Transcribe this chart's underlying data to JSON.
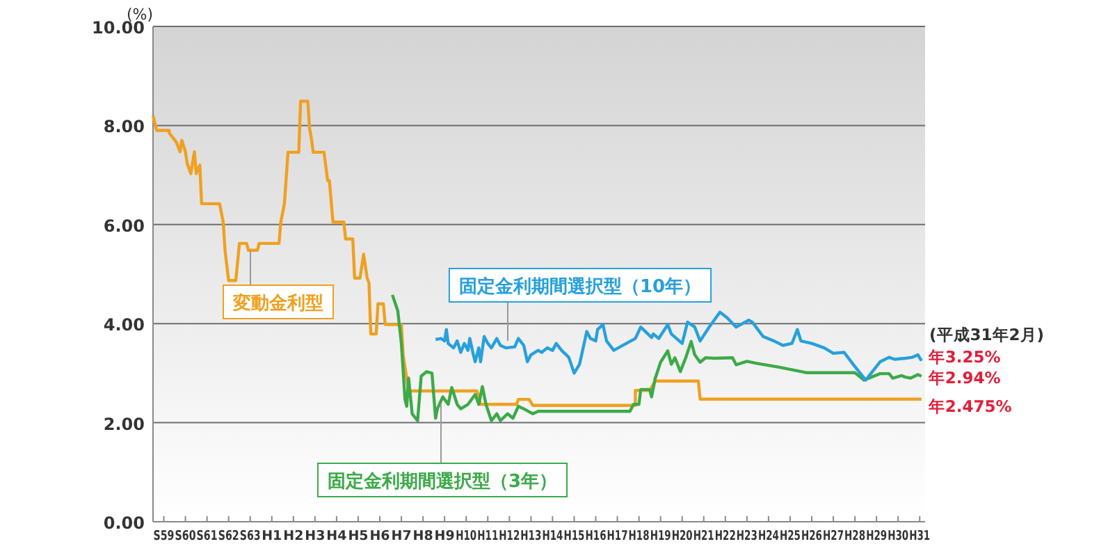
{
  "chart_data": {
    "type": "line",
    "ylabel": "(%)",
    "xlim": [
      "1983-07",
      "2019-04"
    ],
    "ylim": [
      0,
      10
    ],
    "xticks": [
      {
        "value": "1984",
        "label": "S59"
      },
      {
        "value": "1985",
        "label": "S60"
      },
      {
        "value": "1986",
        "label": "S61"
      },
      {
        "value": "1987",
        "label": "S62"
      },
      {
        "value": "1988",
        "label": "S63"
      },
      {
        "value": "1989",
        "label": "H1"
      },
      {
        "value": "1990",
        "label": "H2"
      },
      {
        "value": "1991",
        "label": "H3"
      },
      {
        "value": "1992",
        "label": "H4"
      },
      {
        "value": "1993",
        "label": "H5"
      },
      {
        "value": "1994",
        "label": "H6"
      },
      {
        "value": "1995",
        "label": "H7"
      },
      {
        "value": "1996",
        "label": "H8"
      },
      {
        "value": "1997",
        "label": "H9"
      },
      {
        "value": "1998",
        "label": "H10"
      },
      {
        "value": "1999",
        "label": "H11"
      },
      {
        "value": "2000",
        "label": "H12"
      },
      {
        "value": "2001",
        "label": "H13"
      },
      {
        "value": "2002",
        "label": "H14"
      },
      {
        "value": "2003",
        "label": "H15"
      },
      {
        "value": "2004",
        "label": "H16"
      },
      {
        "value": "2005",
        "label": "H17"
      },
      {
        "value": "2006",
        "label": "H18"
      },
      {
        "value": "2007",
        "label": "H19"
      },
      {
        "value": "2008",
        "label": "H20"
      },
      {
        "value": "2009",
        "label": "H21"
      },
      {
        "value": "2010",
        "label": "H22"
      },
      {
        "value": "2011",
        "label": "H23"
      },
      {
        "value": "2012",
        "label": "H24"
      },
      {
        "value": "2013",
        "label": "H25"
      },
      {
        "value": "2014",
        "label": "H26"
      },
      {
        "value": "2015",
        "label": "H27"
      },
      {
        "value": "2016",
        "label": "H28"
      },
      {
        "value": "2017",
        "label": "H29"
      },
      {
        "value": "2018",
        "label": "H30"
      },
      {
        "value": "2019",
        "label": "H31"
      }
    ],
    "yticks": [
      {
        "value": 0,
        "label": "0.00"
      },
      {
        "value": 2,
        "label": "2.00"
      },
      {
        "value": 4,
        "label": "4.00"
      },
      {
        "value": 6,
        "label": "6.00"
      },
      {
        "value": 8,
        "label": "8.00"
      },
      {
        "value": 10,
        "label": "10.00"
      }
    ],
    "grid": "y",
    "series": [
      {
        "name": "変動金利型",
        "color": "#f0a020",
        "x": [
          "1983-07",
          "1983-09",
          "1984-04",
          "1984-04",
          "1984-08",
          "1984-10",
          "1984-11",
          "1985-01",
          "1985-02",
          "1985-04",
          "1985-06",
          "1985-07",
          "1985-09",
          "1985-10",
          "1986-08",
          "1986-10",
          "1986-11",
          "1987-01",
          "1987-05",
          "1987-07",
          "1987-11",
          "1987-12",
          "1988-05",
          "1988-06",
          "1989-05",
          "1989-06",
          "1989-08",
          "1989-10",
          "1990-04",
          "1990-05",
          "1990-09",
          "1990-10",
          "1990-11",
          "1990-12",
          "1991-06",
          "1991-08",
          "1991-09",
          "1991-11",
          "1992-05",
          "1992-06",
          "1992-10",
          "1992-11",
          "1993-02",
          "1993-04",
          "1993-06",
          "1993-07",
          "1993-08",
          "1993-11",
          "1993-12",
          "1994-03",
          "1994-04",
          "1995-01",
          "1995-02",
          "1995-05",
          "1998-07",
          "1998-09",
          "2000-05",
          "2000-06",
          "2000-12",
          "2001-02",
          "2005-11",
          "2005-11",
          "2006-07",
          "2006-10",
          "2008-10",
          "2008-11",
          "2019-02"
        ],
        "values": [
          8.2,
          7.9,
          7.9,
          7.85,
          7.66,
          7.47,
          7.7,
          7.47,
          7.23,
          7.03,
          7.47,
          7.03,
          7.2,
          6.42,
          6.42,
          6.05,
          5.48,
          4.87,
          4.87,
          5.62,
          5.62,
          5.48,
          5.48,
          5.62,
          5.62,
          6.05,
          6.42,
          7.46,
          7.46,
          8.49,
          8.49,
          7.93,
          7.74,
          7.46,
          7.46,
          6.89,
          6.89,
          6.05,
          6.05,
          5.71,
          5.71,
          4.92,
          4.92,
          5.4,
          4.92,
          4.82,
          3.79,
          3.79,
          4.4,
          4.4,
          3.98,
          3.98,
          3.36,
          2.64,
          2.64,
          2.37,
          2.37,
          2.47,
          2.47,
          2.35,
          2.35,
          2.65,
          2.65,
          2.84,
          2.84,
          2.475,
          2.475
        ]
      },
      {
        "name": "固定金利期間選択型（3年）",
        "color": "#3daa48",
        "x": [
          "1994-08",
          "1994-11",
          "1995-01",
          "1995-03",
          "1995-04",
          "1995-05",
          "1995-07",
          "1995-10",
          "1995-12",
          "1996-03",
          "1996-06",
          "1996-08",
          "1996-09",
          "1996-12",
          "1997-03",
          "1997-05",
          "1997-08",
          "1997-10",
          "1998-02",
          "1998-06",
          "1998-08",
          "1998-10",
          "1998-12",
          "1999-03",
          "1999-06",
          "1999-08",
          "1999-12",
          "2000-03",
          "2000-06",
          "2000-09",
          "2001-02",
          "2001-05",
          "2005-08",
          "2005-10",
          "2006-01",
          "2006-02",
          "2006-07",
          "2006-08",
          "2006-10",
          "2007-01",
          "2007-05",
          "2007-07",
          "2007-09",
          "2007-12",
          "2008-03",
          "2008-06",
          "2008-08",
          "2008-11",
          "2009-02",
          "2009-07",
          "2010-05",
          "2010-07",
          "2011-01",
          "2011-06",
          "2012-07",
          "2013-10",
          "2016-01",
          "2016-06",
          "2017-03",
          "2017-08",
          "2017-10",
          "2018-03",
          "2018-05",
          "2018-08",
          "2018-12",
          "2019-02"
        ],
        "values": [
          4.58,
          4.26,
          3.6,
          2.47,
          2.33,
          2.9,
          2.18,
          2.04,
          2.94,
          3.03,
          3.0,
          2.09,
          2.28,
          2.52,
          2.37,
          2.71,
          2.37,
          2.28,
          2.37,
          2.57,
          2.37,
          2.73,
          2.37,
          2.04,
          2.18,
          2.04,
          2.18,
          2.09,
          2.33,
          2.28,
          2.18,
          2.23,
          2.23,
          2.37,
          2.37,
          2.67,
          2.67,
          2.52,
          2.89,
          3.22,
          3.45,
          3.18,
          3.31,
          3.03,
          3.31,
          3.64,
          3.37,
          3.22,
          3.31,
          3.3,
          3.31,
          3.17,
          3.24,
          3.2,
          3.12,
          3.01,
          3.01,
          2.86,
          2.99,
          2.99,
          2.9,
          2.95,
          2.92,
          2.9,
          2.97,
          2.94
        ]
      },
      {
        "name": "固定金利期間選択型（10年）",
        "color": "#27a0dc",
        "x": [
          "1996-08",
          "1996-11",
          "1997-01",
          "1997-02",
          "1997-03",
          "1997-06",
          "1997-08",
          "1997-10",
          "1997-12",
          "1998-02",
          "1998-03",
          "1998-05",
          "1998-06",
          "1998-08",
          "1998-09",
          "1998-11",
          "1999-01",
          "1999-03",
          "1999-06",
          "1999-08",
          "1999-11",
          "2000-04",
          "2000-06",
          "2000-09",
          "2000-11",
          "2001-01",
          "2001-05",
          "2001-07",
          "2001-10",
          "2002-01",
          "2002-03",
          "2002-06",
          "2002-10",
          "2003-01",
          "2003-04",
          "2003-08",
          "2003-10",
          "2004-01",
          "2004-02",
          "2004-05",
          "2004-07",
          "2004-11",
          "2005-06",
          "2005-11",
          "2006-02",
          "2006-06",
          "2006-08",
          "2006-09",
          "2006-12",
          "2007-05",
          "2007-07",
          "2008-01",
          "2008-04",
          "2008-08",
          "2008-11",
          "2009-04",
          "2009-10",
          "2010-02",
          "2010-07",
          "2011-02",
          "2011-04",
          "2011-10",
          "2012-04",
          "2012-09",
          "2013-02",
          "2013-05",
          "2013-07",
          "2014-01",
          "2014-08",
          "2015-01",
          "2015-07",
          "2015-12",
          "2016-07",
          "2017-03",
          "2017-08",
          "2017-11",
          "2018-05",
          "2018-09",
          "2018-12",
          "2019-02"
        ],
        "values": [
          3.68,
          3.7,
          3.65,
          3.88,
          3.6,
          3.51,
          3.65,
          3.42,
          3.6,
          3.46,
          3.7,
          3.37,
          3.23,
          3.51,
          3.23,
          3.74,
          3.6,
          3.51,
          3.7,
          3.56,
          3.51,
          3.53,
          3.7,
          3.56,
          3.23,
          3.37,
          3.46,
          3.42,
          3.51,
          3.46,
          3.6,
          3.46,
          3.32,
          3.0,
          3.18,
          3.84,
          3.7,
          3.65,
          3.88,
          3.98,
          3.65,
          3.46,
          3.6,
          3.7,
          3.93,
          3.79,
          3.72,
          3.79,
          3.7,
          3.98,
          3.79,
          3.6,
          4.03,
          3.93,
          3.65,
          3.93,
          4.23,
          4.12,
          3.93,
          4.07,
          4.03,
          3.74,
          3.65,
          3.56,
          3.6,
          3.88,
          3.65,
          3.6,
          3.51,
          3.4,
          3.42,
          3.18,
          2.86,
          3.23,
          3.32,
          3.28,
          3.3,
          3.32,
          3.37,
          3.25
        ]
      }
    ],
    "annotations": [
      "(平成31年2月)",
      {
        "text": "年3.25%",
        "x": "2019-02",
        "y": 3.25
      },
      {
        "text": "年2.94%",
        "x": "2019-02",
        "y": 2.94
      },
      {
        "text": "年2.475%",
        "x": "2019-02",
        "y": 2.475
      }
    ]
  }
}
